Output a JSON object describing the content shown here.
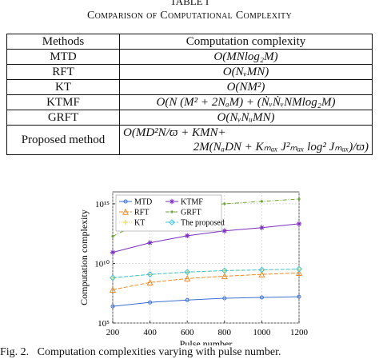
{
  "header": {
    "label": "TABLE I",
    "title": "Comparison of Computational Complexity"
  },
  "table": {
    "columns": [
      "Methods",
      "Computation complexity"
    ],
    "rows": [
      [
        "MTD",
        [
          "O(MNlog₂M)"
        ]
      ],
      [
        "RFT",
        [
          "O(NᵥMN)"
        ]
      ],
      [
        "KT",
        [
          "O(NM²)"
        ]
      ],
      [
        "KTMF",
        [
          "O(N (M² + 2NₐM) + (ṄᵥṄᵥNMlog₂M)"
        ]
      ],
      [
        "GRFT",
        [
          "O(NᵥNᵤMN)"
        ]
      ],
      [
        "Proposed method",
        [
          "O(MD²N/ϖ + KMN+",
          "2M(NₐDN + Kₘₐₓ J²ₘₐₓ log² Jₘₐₓ)/ϖ)"
        ]
      ]
    ]
  },
  "chart_data": {
    "type": "line",
    "x_label": "Pulse number",
    "y_label": "Computation complexity",
    "x": [
      200,
      400,
      600,
      800,
      1000,
      1200
    ],
    "xlim": [
      200,
      1200
    ],
    "xticks": [
      200,
      400,
      600,
      800,
      1000,
      1200
    ],
    "ylim": [
      100000,
      10000000000000000
    ],
    "log_y": true,
    "grid": true,
    "legend": "upper left",
    "yticks": [
      {
        "value": 100000,
        "label": "10⁵"
      },
      {
        "value": 10000000000,
        "label": "10¹⁰"
      },
      {
        "value": 1000000000000000,
        "label": "10¹⁵"
      }
    ],
    "series": [
      {
        "name": "MTD",
        "color": "#3b6fd4",
        "values": [
          2500000,
          5400000,
          8500000,
          12000000,
          14000000,
          16000000
        ]
      },
      {
        "name": "RFT",
        "color": "#f08a24",
        "values": [
          63000000,
          250000000,
          540000000,
          850000000,
          1200000000,
          1600000000
        ]
      },
      {
        "name": "KT",
        "color": "#e6d34a",
        "values": [
          600000000,
          1150000000,
          1800000000,
          2400000000,
          2800000000,
          3300000000
        ]
      },
      {
        "name": "KTMF",
        "color": "#7b2fbe",
        "values": [
          85000000000,
          540000000000,
          2100000000000,
          5400000000000,
          10000000000000,
          21000000000000
        ]
      },
      {
        "name": "GRFT",
        "color": "#6aa533",
        "values": [
          1900000000000,
          63000000000000,
          460000000000000,
          1000000000000000,
          1600000000000000,
          2500000000000000
        ]
      },
      {
        "name": "The proposed",
        "color": "#3ec3e0",
        "values": [
          630000000,
          1200000000,
          1900000000,
          2500000000,
          2900000000,
          3400000000
        ]
      }
    ]
  },
  "caption": "Fig. 2.   Computation complexities varying with pulse number."
}
